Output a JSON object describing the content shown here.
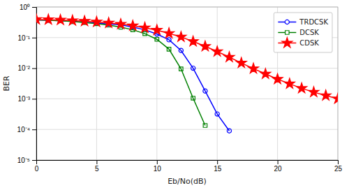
{
  "chart_data": {
    "type": "line",
    "xlabel": "Eb/No(dB)",
    "ylabel": "BER",
    "log": "y",
    "grid": true,
    "legend": "upper right",
    "xlim": [
      0,
      25
    ],
    "xticks": [
      0,
      5,
      10,
      15,
      20,
      25
    ],
    "ylim": [
      1e-05,
      1.0
    ],
    "yticks": [
      {
        "value": 1e-05,
        "label": "10⁻⁵"
      },
      {
        "value": 0.0001,
        "label": "10⁻⁴"
      },
      {
        "value": 0.001,
        "label": "10⁻³"
      },
      {
        "value": 0.01,
        "label": "10⁻²"
      },
      {
        "value": 0.1,
        "label": "10⁻¹"
      },
      {
        "value": 1,
        "label": "10⁰"
      }
    ],
    "series": [
      {
        "name": "TRDCSK",
        "color": "#0000FF",
        "marker": "circle",
        "x": [
          0,
          1,
          2,
          3,
          4,
          5,
          6,
          7,
          8,
          9,
          10,
          11,
          12,
          13,
          14,
          15,
          16
        ],
        "values": [
          0.38,
          0.37,
          0.36,
          0.34,
          0.32,
          0.3,
          0.28,
          0.26,
          0.22,
          0.18,
          0.13,
          0.085,
          0.038,
          0.01,
          0.0018,
          0.00032,
          9e-05
        ]
      },
      {
        "name": "DCSK",
        "color": "#008000",
        "marker": "square",
        "x": [
          0,
          1,
          2,
          3,
          4,
          5,
          6,
          7,
          8,
          9,
          10,
          11,
          12,
          13,
          14
        ],
        "values": [
          0.38,
          0.37,
          0.355,
          0.335,
          0.31,
          0.285,
          0.255,
          0.22,
          0.18,
          0.135,
          0.088,
          0.042,
          0.0095,
          0.00105,
          0.000135
        ]
      },
      {
        "name": "CDSK",
        "color": "#FF0000",
        "marker": "star",
        "x": [
          0,
          1,
          2,
          3,
          4,
          5,
          6,
          7,
          8,
          9,
          10,
          11,
          12,
          13,
          14,
          15,
          16,
          17,
          18,
          19,
          20,
          21,
          22,
          23,
          24,
          25
        ],
        "values": [
          0.39,
          0.385,
          0.375,
          0.36,
          0.345,
          0.325,
          0.3,
          0.275,
          0.245,
          0.21,
          0.175,
          0.138,
          0.105,
          0.075,
          0.052,
          0.035,
          0.023,
          0.0148,
          0.0097,
          0.0065,
          0.0044,
          0.0031,
          0.0022,
          0.00165,
          0.00128,
          0.001
        ]
      }
    ]
  }
}
